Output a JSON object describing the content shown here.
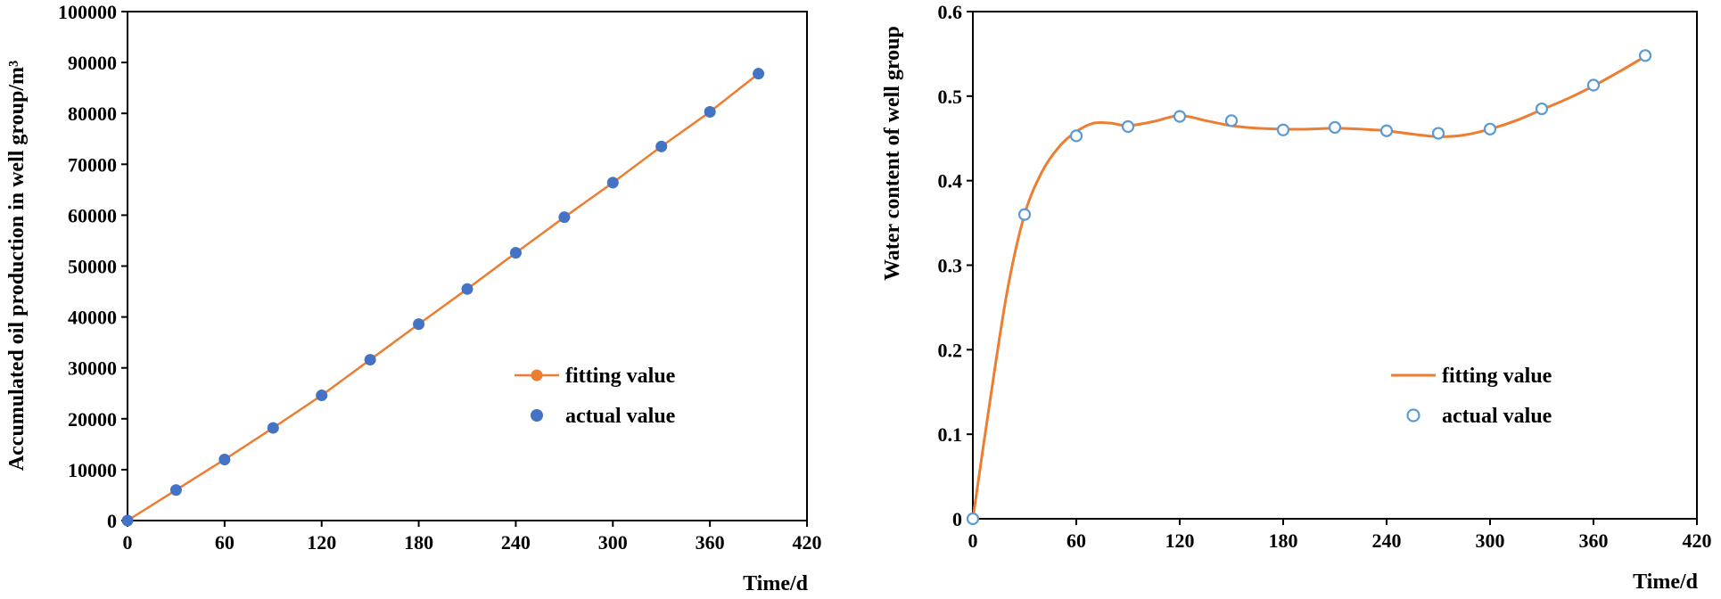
{
  "chart_data": [
    {
      "type": "line",
      "xlabel": "Time/d",
      "ylabel": "Accumulated oil production in well group/m³",
      "xlim": [
        0,
        420
      ],
      "ylim": [
        0,
        100000
      ],
      "xticks": [
        "0",
        "60",
        "120",
        "180",
        "240",
        "300",
        "360",
        "420"
      ],
      "yticks": [
        "0",
        "10000",
        "20000",
        "30000",
        "40000",
        "50000",
        "60000",
        "70000",
        "80000",
        "90000",
        "100000"
      ],
      "grid": false,
      "legend_position": "center-right",
      "series": [
        {
          "name": "fitting value",
          "style": "line-with-marker",
          "color": "#ED7D31",
          "x": [
            0,
            30,
            60,
            90,
            120,
            150,
            180,
            210,
            240,
            270,
            300,
            330,
            360,
            390
          ],
          "y": [
            0,
            6000,
            12000,
            18200,
            24600,
            31600,
            38600,
            45500,
            52600,
            59600,
            66400,
            73500,
            80300,
            87800
          ]
        },
        {
          "name": "actual value",
          "style": "filled-marker",
          "color": "#4472C4",
          "x": [
            0,
            30,
            60,
            90,
            120,
            150,
            180,
            210,
            240,
            270,
            300,
            330,
            360,
            390
          ],
          "y": [
            0,
            6000,
            12000,
            18200,
            24600,
            31600,
            38600,
            45500,
            52600,
            59600,
            66400,
            73500,
            80300,
            87800
          ]
        }
      ]
    },
    {
      "type": "line",
      "xlabel": "Time/d",
      "ylabel": "Water content of well group",
      "xlim": [
        0,
        420
      ],
      "ylim": [
        0,
        0.6
      ],
      "xticks": [
        "0",
        "60",
        "120",
        "180",
        "240",
        "300",
        "360",
        "420"
      ],
      "yticks": [
        "0",
        "0.1",
        "0.2",
        "0.3",
        "0.4",
        "0.5",
        "0.6"
      ],
      "grid": false,
      "legend_position": "center-right",
      "series": [
        {
          "name": "fitting value",
          "style": "smooth-line",
          "color": "#ED7D31",
          "x": [
            0,
            10,
            20,
            30,
            40,
            50,
            60,
            70,
            80,
            90,
            105,
            120,
            135,
            150,
            165,
            180,
            195,
            210,
            225,
            240,
            255,
            270,
            285,
            300,
            315,
            330,
            345,
            360,
            375,
            390
          ],
          "y": [
            0,
            0.14,
            0.27,
            0.36,
            0.41,
            0.44,
            0.458,
            0.468,
            0.468,
            0.465,
            0.47,
            0.477,
            0.471,
            0.465,
            0.462,
            0.461,
            0.461,
            0.462,
            0.461,
            0.459,
            0.455,
            0.452,
            0.454,
            0.461,
            0.471,
            0.484,
            0.497,
            0.512,
            0.529,
            0.547
          ]
        },
        {
          "name": "actual value",
          "style": "hollow-marker",
          "color": "#5B9BD5",
          "x": [
            0,
            30,
            60,
            90,
            120,
            150,
            180,
            210,
            240,
            270,
            300,
            330,
            360,
            390
          ],
          "y": [
            0,
            0.36,
            0.453,
            0.464,
            0.476,
            0.471,
            0.46,
            0.463,
            0.459,
            0.456,
            0.461,
            0.485,
            0.513,
            0.548
          ]
        }
      ]
    }
  ]
}
